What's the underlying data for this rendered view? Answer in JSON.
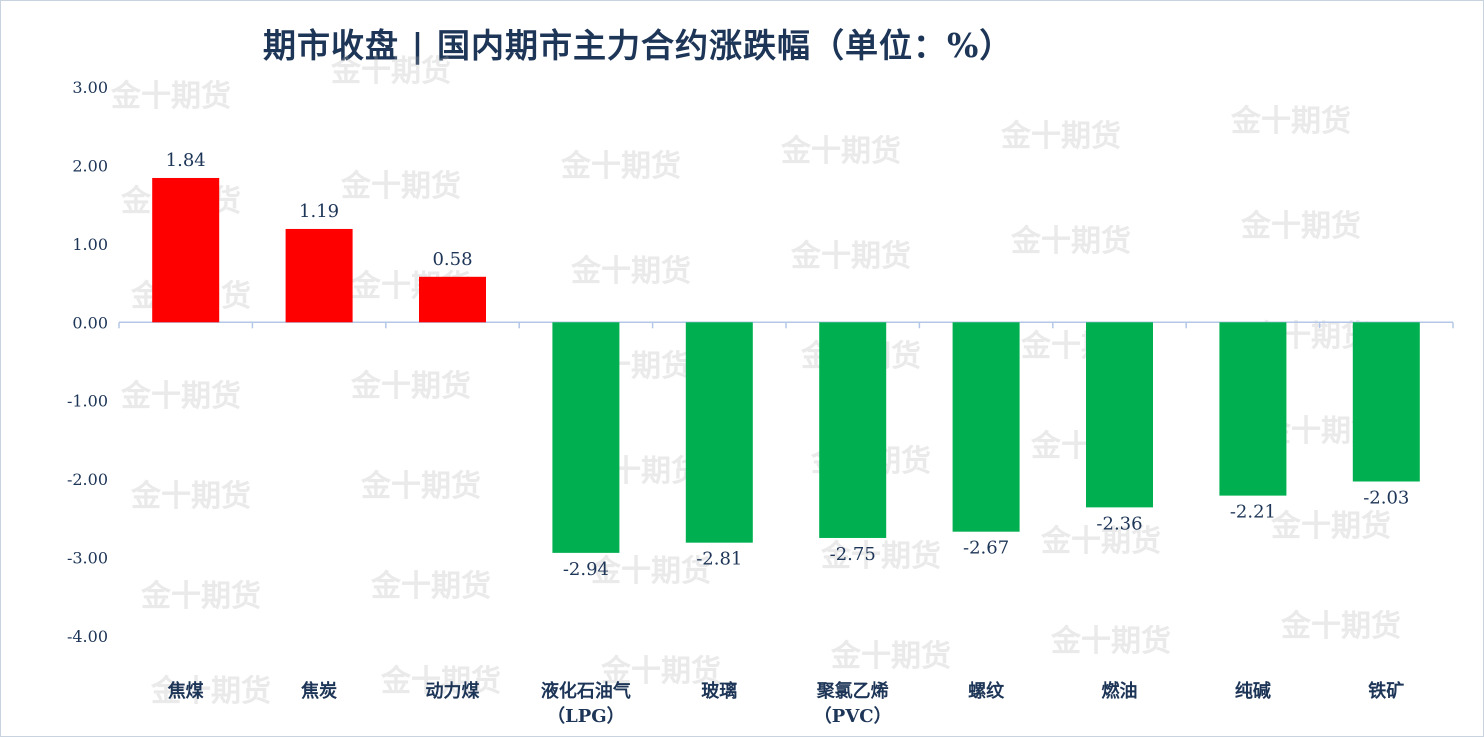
{
  "watermark": "金十期货",
  "chart_data": {
    "type": "bar",
    "title": "期市收盘 | 国内期市主力合约涨跌幅（单位：%）",
    "categories": [
      [
        "焦煤"
      ],
      [
        "焦炭"
      ],
      [
        "动力煤"
      ],
      [
        "液化石油气",
        "（LPG）"
      ],
      [
        "玻璃"
      ],
      [
        "聚氯乙烯",
        "（PVC）"
      ],
      [
        "螺纹"
      ],
      [
        "燃油"
      ],
      [
        "纯碱"
      ],
      [
        "铁矿"
      ]
    ],
    "values": [
      1.84,
      1.19,
      0.58,
      -2.94,
      -2.81,
      -2.75,
      -2.67,
      -2.36,
      -2.21,
      -2.03
    ],
    "data_labels": [
      "1.84",
      "1.19",
      "0.58",
      "-2.94",
      "-2.81",
      "-2.75",
      "-2.67",
      "-2.36",
      "-2.21",
      "-2.03"
    ],
    "yticks": [
      "3.00",
      "2.00",
      "1.00",
      "0.00",
      "-1.00",
      "-2.00",
      "-3.00",
      "-4.00"
    ],
    "ylim": [
      -4.5,
      3.0
    ],
    "colors": {
      "positive": "#ff0000",
      "negative": "#00b050",
      "axis": "#b4c7e7",
      "text": "#1d3557"
    },
    "grid": false,
    "legend": "none"
  }
}
